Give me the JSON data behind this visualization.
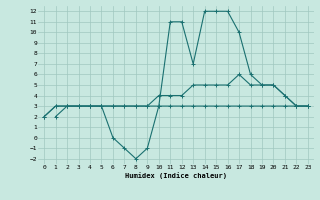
{
  "xlabel": "Humidex (Indice chaleur)",
  "background_color": "#c8e8e0",
  "grid_color": "#a0c8c0",
  "line_color": "#1a7070",
  "xlim": [
    -0.5,
    23.5
  ],
  "ylim": [
    -2.5,
    12.5
  ],
  "xticks": [
    0,
    1,
    2,
    3,
    4,
    5,
    6,
    7,
    8,
    9,
    10,
    11,
    12,
    13,
    14,
    15,
    16,
    17,
    18,
    19,
    20,
    21,
    22,
    23
  ],
  "yticks": [
    -2,
    -1,
    0,
    1,
    2,
    3,
    4,
    5,
    6,
    7,
    8,
    9,
    10,
    11,
    12
  ],
  "series": [
    {
      "x": [
        0,
        1,
        2,
        3,
        4,
        5,
        6,
        7,
        8,
        9,
        10,
        11,
        12,
        13,
        14,
        15,
        16,
        17,
        18,
        19,
        20,
        21,
        22,
        23
      ],
      "y": [
        2,
        3,
        3,
        3,
        3,
        3,
        3,
        3,
        3,
        3,
        3,
        3,
        3,
        3,
        3,
        3,
        3,
        3,
        3,
        3,
        3,
        3,
        3,
        3
      ]
    },
    {
      "x": [
        0,
        1,
        2,
        3,
        4,
        5,
        6,
        7,
        8,
        9,
        10,
        11,
        12,
        13,
        14,
        15,
        16,
        17,
        18,
        19,
        20,
        21,
        22,
        23
      ],
      "y": [
        2,
        3,
        3,
        3,
        3,
        3,
        3,
        3,
        3,
        3,
        4,
        4,
        4,
        5,
        5,
        5,
        5,
        6,
        5,
        5,
        5,
        4,
        3,
        3
      ]
    },
    {
      "x": [
        1,
        2,
        3,
        4,
        5,
        6,
        7,
        8,
        9,
        10,
        11,
        12,
        13,
        14,
        15,
        16,
        17,
        18,
        19,
        20,
        21,
        22,
        23
      ],
      "y": [
        2,
        3,
        3,
        3,
        3,
        0,
        -1,
        -2,
        -1,
        3,
        11,
        11,
        7,
        12,
        12,
        12,
        10,
        6,
        5,
        5,
        4,
        3,
        3
      ]
    }
  ]
}
